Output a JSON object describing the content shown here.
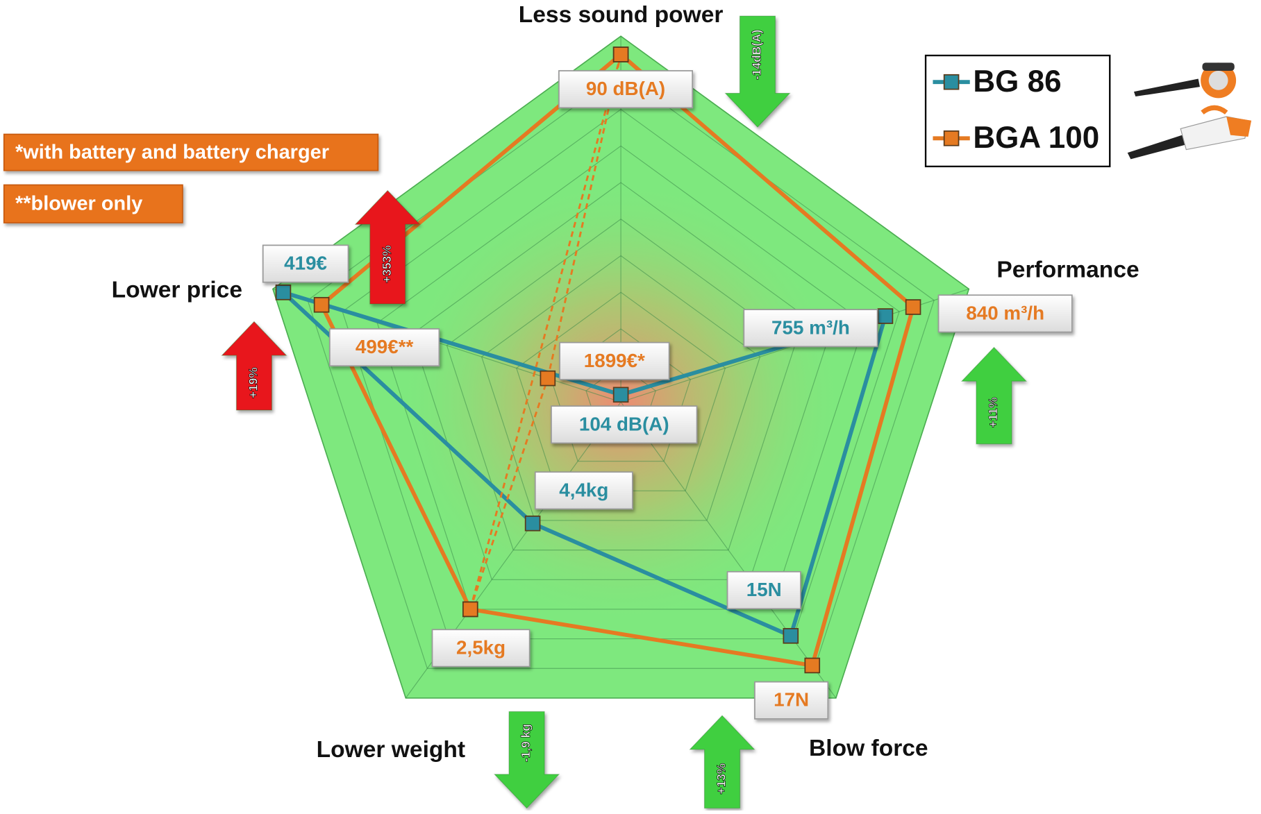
{
  "chart_data": {
    "type": "radar",
    "categories": [
      "Less sound power",
      "Performance",
      "Blow force",
      "Lower weight",
      "Lower price"
    ],
    "rlim": [
      0,
      10
    ],
    "rticks": [
      1,
      2,
      3,
      4,
      5,
      6,
      7,
      8,
      9,
      10
    ],
    "grid": true,
    "legend_position": "upper right",
    "series": [
      {
        "name": "BG 86",
        "color": "#2a8ea0",
        "values": [
          0.2,
          7.6,
          7.9,
          4.1,
          9.7
        ],
        "value_labels": [
          "104 dB(A)",
          "755 m³/h",
          "15N",
          "4,4kg",
          "419€"
        ]
      },
      {
        "name": "BGA 100",
        "color": "#e57a22",
        "values": [
          9.5,
          8.4,
          8.9,
          7.0,
          8.6
        ],
        "value_labels": [
          "90 dB(A)",
          "840 m³/h",
          "17N",
          "2,5kg",
          "499€**"
        ]
      },
      {
        "color": "#e57a22",
        "dashed": true,
        "values": [
          9.5,
          null,
          null,
          7.0,
          2.1
        ],
        "value_labels": [
          null,
          null,
          null,
          null,
          "1899€*"
        ]
      }
    ],
    "annotations": [
      {
        "text": "-14dB(A)",
        "direction": "down",
        "color": "#3fcf3f"
      },
      {
        "text": "+11%",
        "direction": "up",
        "color": "#3fcf3f"
      },
      {
        "text": "+13%",
        "direction": "up",
        "color": "#3fcf3f"
      },
      {
        "text": "-1,9 kg",
        "direction": "down",
        "color": "#3fcf3f"
      },
      {
        "text": "+19%",
        "direction": "up",
        "color": "#e8121a"
      },
      {
        "text": "+353%",
        "direction": "up",
        "color": "#e8121a"
      }
    ],
    "notes": [
      "*with battery and battery charger",
      "**blower only"
    ]
  }
}
